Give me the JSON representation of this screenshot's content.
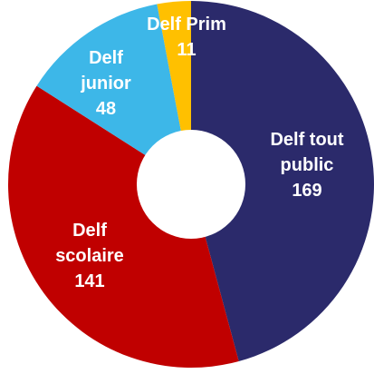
{
  "chart_data": {
    "type": "pie",
    "variant": "donut",
    "title": "",
    "categories": [
      "Delf tout public",
      "Delf scolaire",
      "Delf junior",
      "Delf Prim"
    ],
    "values": [
      169,
      141,
      48,
      11
    ],
    "colors": [
      "#2b2a6b",
      "#c00000",
      "#3db7e8",
      "#ffc000"
    ],
    "legend": "none",
    "slice_labels": [
      {
        "lines": [
          "Delf tout",
          "public",
          "169"
        ]
      },
      {
        "lines": [
          "Delf",
          "scolaire",
          "141"
        ]
      },
      {
        "lines": [
          "Delf",
          "junior",
          "48"
        ]
      },
      {
        "lines": [
          "Delf Prim",
          "11"
        ]
      }
    ]
  }
}
